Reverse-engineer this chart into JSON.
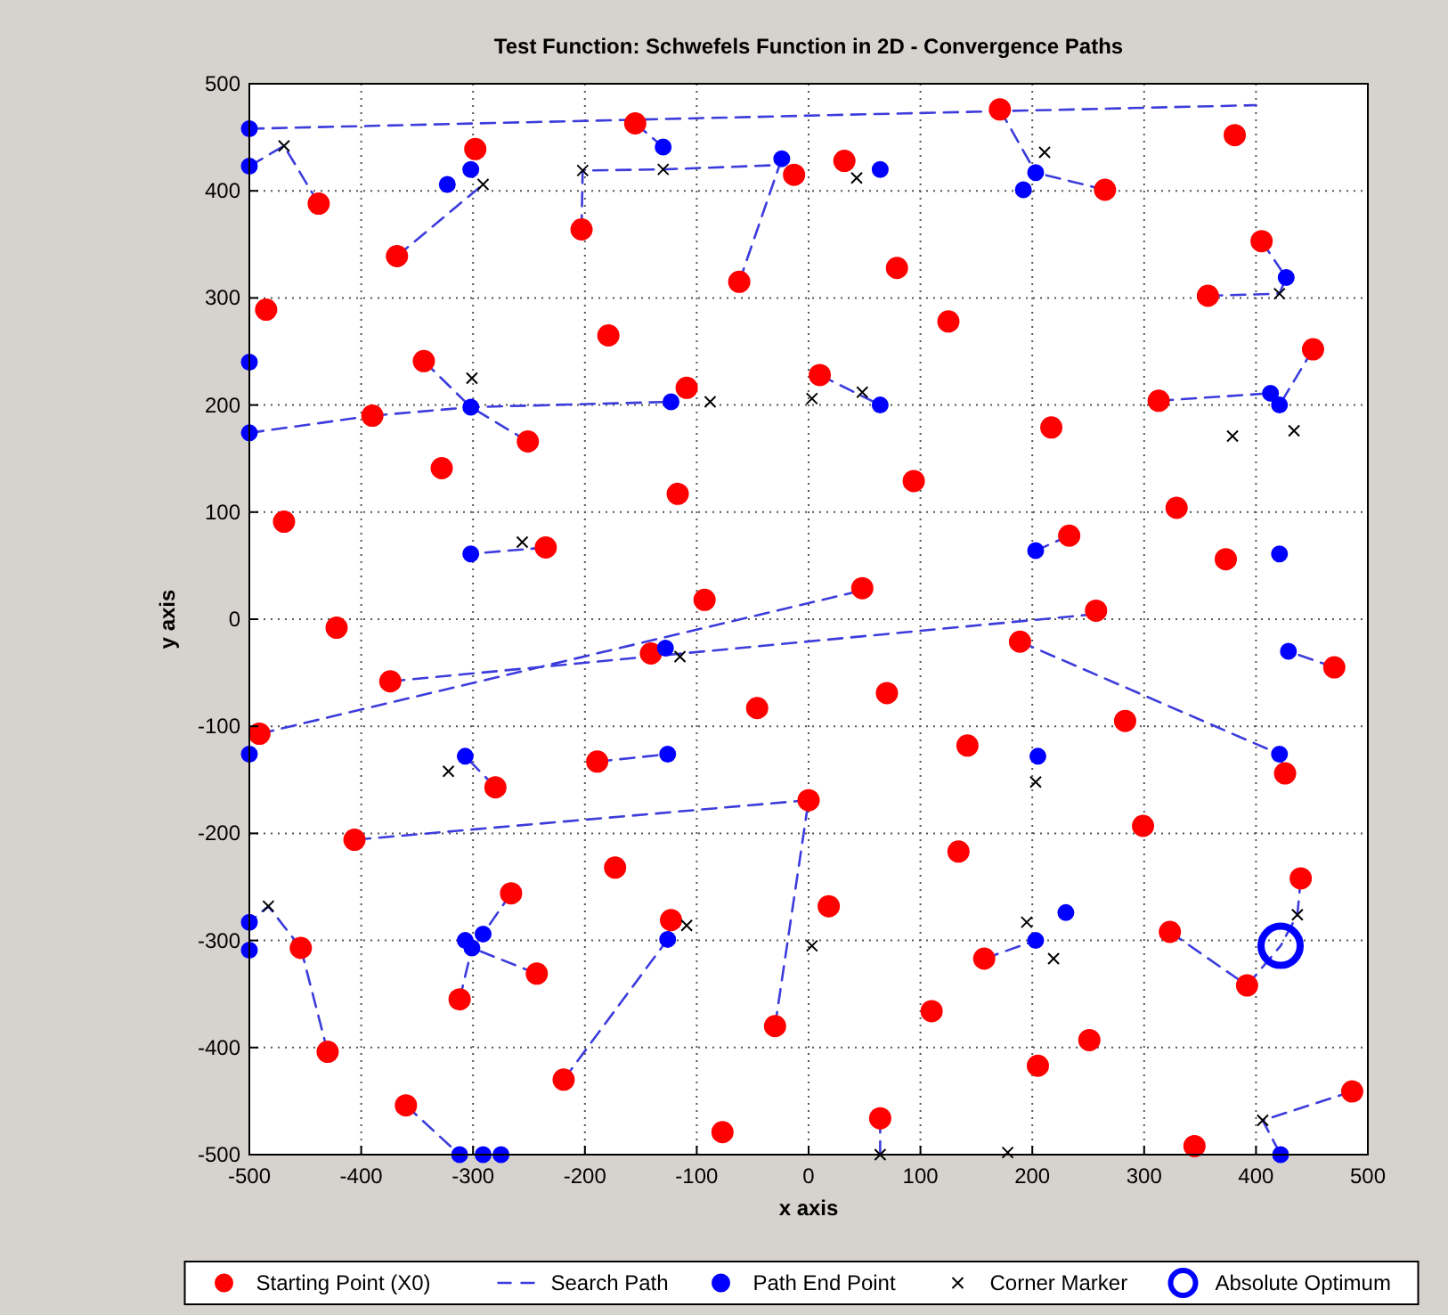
{
  "chart_data": {
    "type": "scatter",
    "title": "Test Function: Schwefels Function in 2D - Convergence Paths",
    "xlabel": "x axis",
    "ylabel": "y axis",
    "xlim": [
      -500,
      500
    ],
    "ylim": [
      -500,
      500
    ],
    "xticks": [
      -500,
      -400,
      -300,
      -200,
      -100,
      0,
      100,
      200,
      300,
      400,
      500
    ],
    "yticks": [
      -500,
      -400,
      -300,
      -200,
      -100,
      0,
      100,
      200,
      300,
      400,
      500
    ],
    "grid": true,
    "legend": "bottom",
    "series": [
      {
        "name": "Starting Point (X0)",
        "marker": "circle",
        "color": "#ff0000",
        "x": [
          -298,
          -368,
          -438,
          -485,
          -344,
          -390,
          -328,
          -251,
          -235,
          -469,
          -203,
          -179,
          -109,
          -117,
          -93,
          -155,
          -62,
          -13,
          171,
          381,
          405,
          357,
          451,
          265,
          79,
          125,
          32,
          10,
          217,
          94,
          313,
          329,
          373,
          233,
          48,
          257,
          -422,
          -374,
          -491,
          -280,
          -189,
          -141,
          -46,
          0,
          -406,
          -173,
          -266,
          -243,
          -312,
          -454,
          -123,
          -430,
          -360,
          -219,
          -77,
          -30,
          189,
          470,
          70,
          283,
          142,
          299,
          426,
          134,
          440,
          18,
          323,
          157,
          392,
          110,
          251,
          205,
          486,
          64,
          345
        ],
        "values": [
          439,
          339,
          388,
          289,
          241,
          190,
          141,
          166,
          67,
          91,
          364,
          265,
          216,
          117,
          18,
          463,
          315,
          415,
          476,
          452,
          353,
          302,
          252,
          401,
          328,
          278,
          428,
          228,
          179,
          129,
          204,
          104,
          56,
          78,
          29,
          8,
          -8,
          -58,
          -107,
          -157,
          -133,
          -32,
          -83,
          -169,
          -206,
          -232,
          -256,
          -331,
          -355,
          -307,
          -281,
          -404,
          -454,
          -430,
          -479,
          -380,
          -21,
          -45,
          -69,
          -95,
          -118,
          -193,
          -144,
          -217,
          -242,
          -268,
          -292,
          -317,
          -342,
          -366,
          -393,
          -417,
          -441,
          -466,
          -492
        ]
      },
      {
        "name": "Search Path",
        "type": "line",
        "line_style": "dashed",
        "color": "#3c3cdc",
        "x": [
          -368,
          -291,
          null,
          -438,
          -469,
          -500,
          null,
          -155,
          -130,
          null,
          -203,
          -202,
          -130,
          -30,
          null,
          -344,
          -302,
          null,
          -390,
          -302,
          -123,
          null,
          -251,
          -302,
          null,
          -235,
          -302,
          null,
          -500,
          400,
          null,
          -500,
          -390,
          null,
          -62,
          -24,
          null,
          171,
          203,
          null,
          265,
          203,
          null,
          405,
          427,
          null,
          357,
          421,
          427,
          null,
          451,
          421,
          null,
          313,
          413,
          null,
          10,
          64,
          null,
          233,
          203,
          null,
          0,
          -406,
          null,
          -280,
          -307,
          null,
          -189,
          -126,
          null,
          -141,
          -128,
          null,
          -266,
          -291,
          null,
          -243,
          -301,
          null,
          -312,
          -301,
          null,
          -123,
          -126,
          null,
          -454,
          -483,
          -500,
          null,
          -430,
          -454,
          null,
          -360,
          -312,
          null,
          -219,
          -126,
          null,
          -30,
          0,
          null,
          64,
          64,
          null,
          157,
          203,
          null,
          392,
          422,
          null,
          323,
          392,
          null,
          486,
          406,
          422,
          null,
          440,
          437,
          422,
          null,
          470,
          429,
          null,
          426,
          421,
          null,
          189,
          421,
          null,
          -491,
          48,
          null,
          -374,
          259
        ],
        "values": [
          339,
          406,
          null,
          388,
          442,
          423,
          null,
          463,
          441,
          null,
          364,
          419,
          420,
          424,
          null,
          241,
          198,
          null,
          190,
          198,
          203,
          null,
          166,
          198,
          null,
          67,
          61,
          null,
          458,
          480,
          null,
          174,
          190,
          null,
          315,
          430,
          null,
          476,
          417,
          null,
          401,
          417,
          null,
          353,
          319,
          null,
          302,
          304,
          319,
          null,
          252,
          200,
          null,
          204,
          211,
          null,
          228,
          200,
          null,
          78,
          64,
          null,
          -169,
          -206,
          null,
          -157,
          -128,
          null,
          -133,
          -126,
          null,
          -32,
          -27,
          null,
          -256,
          -294,
          null,
          -331,
          -307,
          null,
          -355,
          -307,
          null,
          -281,
          -299,
          null,
          -307,
          -268,
          -283,
          null,
          -404,
          -307,
          null,
          -454,
          -500,
          null,
          -430,
          -299,
          null,
          -380,
          -169,
          null,
          -466,
          -500,
          null,
          -317,
          -300,
          null,
          -342,
          -305,
          null,
          -292,
          -342,
          null,
          -441,
          -468,
          -500,
          null,
          -242,
          -276,
          -305,
          null,
          -45,
          -30,
          null,
          -144,
          -126,
          null,
          -21,
          -126,
          null,
          -107,
          27,
          null,
          -58,
          5
        ]
      },
      {
        "name": "Path End Point",
        "marker": "circle",
        "color": "#0000ff",
        "x": [
          -500,
          -500,
          -500,
          -500,
          -323,
          -302,
          -302,
          -302,
          -130,
          -123,
          -24,
          64,
          203,
          192,
          427,
          413,
          421,
          64,
          203,
          421,
          -500,
          -500,
          -500,
          -307,
          -126,
          -307,
          -291,
          -301,
          -126,
          -128,
          -312,
          -291,
          -275,
          429,
          421,
          205,
          230,
          203,
          422
        ],
        "values": [
          458,
          423,
          240,
          174,
          406,
          420,
          198,
          61,
          441,
          203,
          430,
          420,
          417,
          401,
          319,
          211,
          200,
          200,
          64,
          61,
          -126,
          -283,
          -309,
          -128,
          -126,
          -300,
          -294,
          -307,
          -299,
          -27,
          -500,
          -500,
          -500,
          -30,
          -126,
          -128,
          -274,
          -300,
          -500
        ]
      },
      {
        "name": "Corner Marker",
        "marker": "cross",
        "color": "#000000",
        "x": [
          -469,
          -291,
          -202,
          -130,
          -301,
          -256,
          -88,
          43,
          211,
          421,
          3,
          48,
          379,
          434,
          -322,
          -115,
          -109,
          -483,
          3,
          203,
          195,
          219,
          437,
          406,
          178,
          64
        ],
        "values": [
          442,
          406,
          419,
          420,
          225,
          72,
          203,
          412,
          436,
          304,
          206,
          212,
          171,
          176,
          -142,
          -35,
          -286,
          -268,
          -305,
          -152,
          -283,
          -317,
          -276,
          -468,
          -498,
          -500
        ]
      },
      {
        "name": "Absolute Optimum",
        "type": "bubble",
        "color": "#0000ff",
        "x": [
          422
        ],
        "values": [
          -305
        ],
        "sizes": [
          1
        ]
      }
    ]
  }
}
